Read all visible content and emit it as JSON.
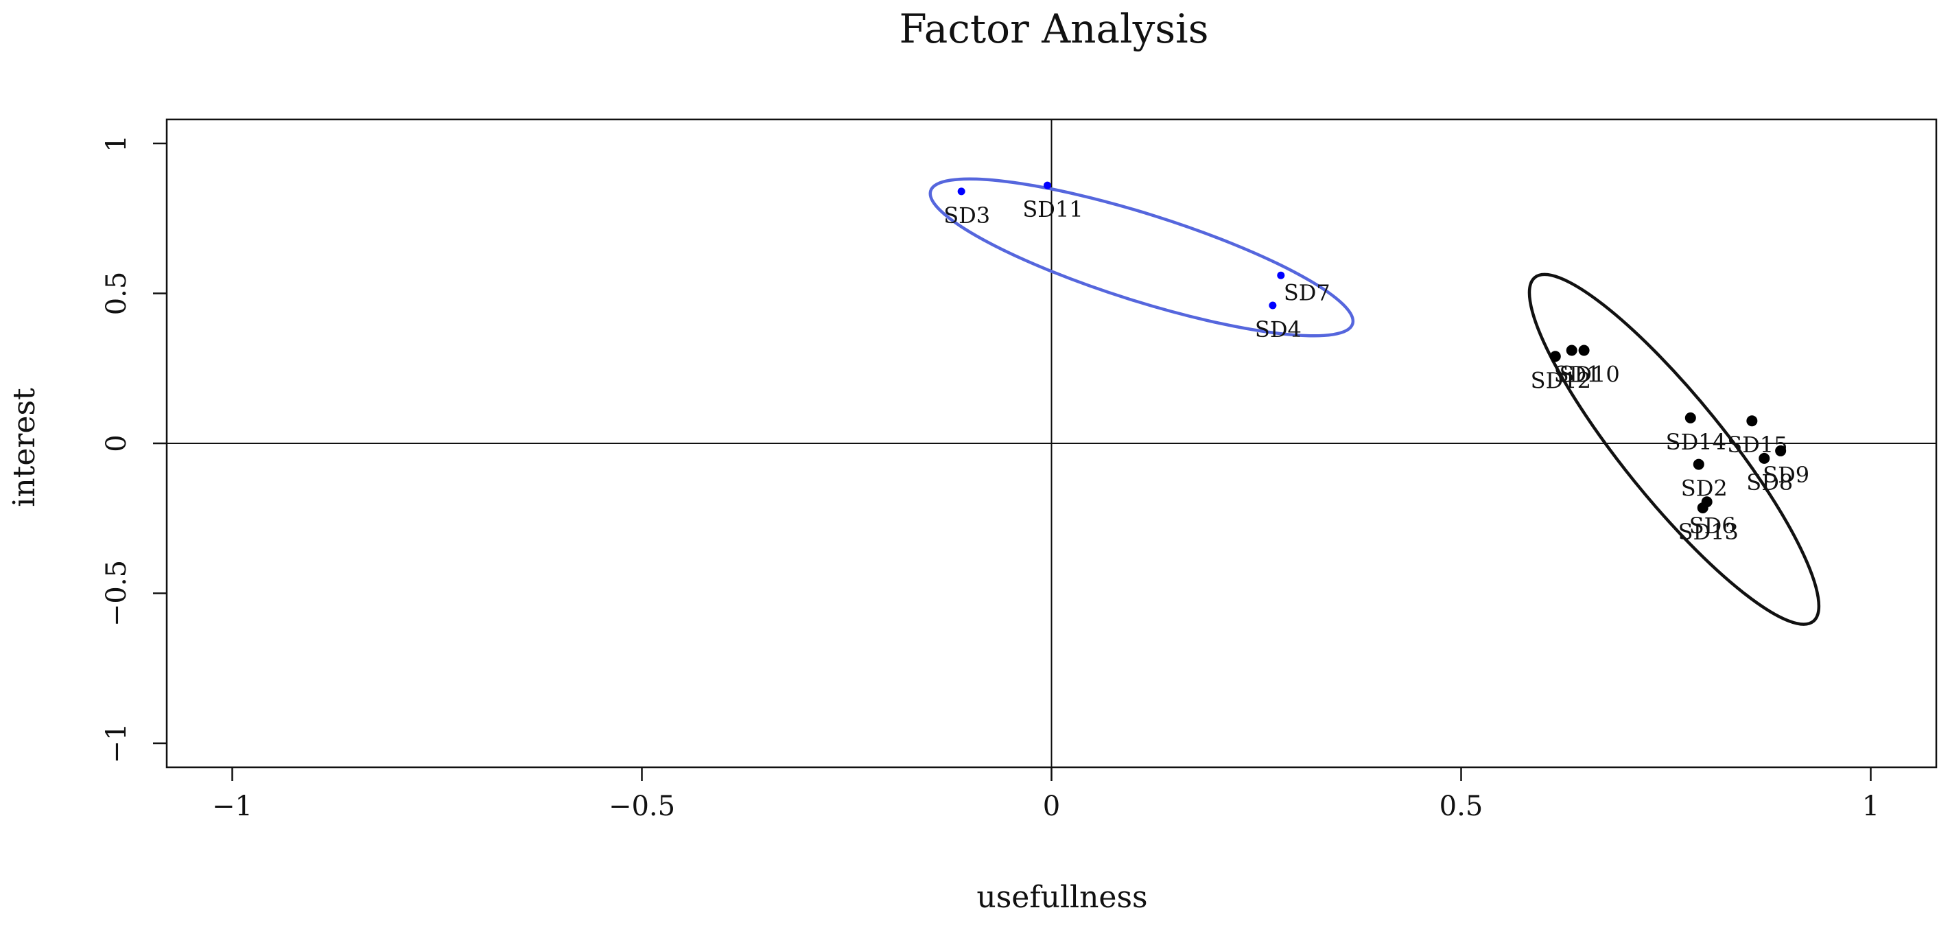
{
  "chart_data": {
    "type": "scatter",
    "title": "Factor Analysis",
    "xlabel": "usefullness",
    "ylabel": "interest",
    "xlim": [
      -1.08,
      1.08
    ],
    "ylim": [
      -1.08,
      1.08
    ],
    "x_ticks": [
      -1,
      -0.5,
      0,
      0.5,
      1
    ],
    "x_tick_labels": [
      "−1",
      "−0.5",
      "0",
      "0.5",
      "1"
    ],
    "y_ticks": [
      -1,
      -0.5,
      0,
      0.5,
      1
    ],
    "y_tick_labels": [
      "−1",
      "−0.5",
      "0",
      "0.5",
      "1"
    ],
    "reference_lines": {
      "x": 0,
      "y": 0
    },
    "grid": false,
    "series": [
      {
        "color": "#0000ff",
        "points": [
          {
            "label": "SD3",
            "x": -0.11,
            "y": 0.84,
            "label_side": "below"
          },
          {
            "label": "SD11",
            "x": -0.005,
            "y": 0.86,
            "label_side": "below"
          },
          {
            "label": "SD7",
            "x": 0.28,
            "y": 0.56,
            "label_side": "right"
          },
          {
            "label": "SD4",
            "x": 0.27,
            "y": 0.46,
            "label_side": "below"
          }
        ],
        "ellipse": {
          "cx": 0.11,
          "cy": 0.62,
          "rx": 0.27,
          "ry": 0.145,
          "angle_deg": 17.5,
          "color": "#5566dd"
        }
      },
      {
        "color": "#000000",
        "points": [
          {
            "label": "SD1",
            "x": 0.635,
            "y": 0.31,
            "label_side": "below"
          },
          {
            "label": "SD12",
            "x": 0.615,
            "y": 0.29,
            "label_side": "below"
          },
          {
            "label": "SD10",
            "x": 0.65,
            "y": 0.31,
            "label_side": "below"
          },
          {
            "label": "SD14",
            "x": 0.78,
            "y": 0.085,
            "label_side": "below"
          },
          {
            "label": "SD15",
            "x": 0.855,
            "y": 0.075,
            "label_side": "below"
          },
          {
            "label": "SD9",
            "x": 0.89,
            "y": -0.025,
            "label_side": "below"
          },
          {
            "label": "SD8",
            "x": 0.87,
            "y": -0.05,
            "label_side": "below"
          },
          {
            "label": "SD2",
            "x": 0.79,
            "y": -0.07,
            "label_side": "below"
          },
          {
            "label": "SD6",
            "x": 0.8,
            "y": -0.195,
            "label_side": "below"
          },
          {
            "label": "SD13",
            "x": 0.795,
            "y": -0.215,
            "label_side": "below"
          }
        ],
        "ellipse": {
          "cx": 0.76,
          "cy": -0.02,
          "rx": 0.27,
          "ry": 0.17,
          "angle_deg": 51,
          "color": "#111111"
        }
      }
    ]
  }
}
